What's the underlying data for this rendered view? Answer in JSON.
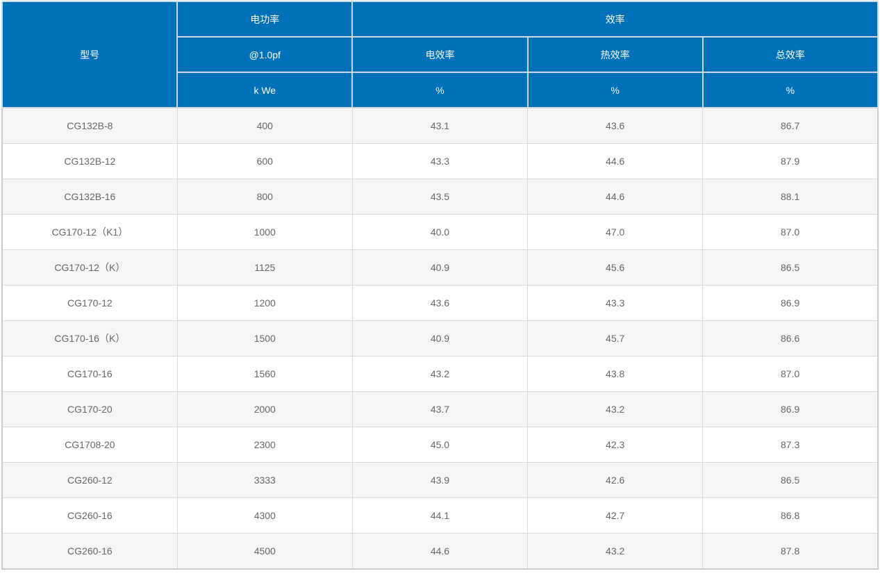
{
  "colors": {
    "header_bg": "#0071b8",
    "header_text": "#ffffff",
    "header_border": "#cddae4",
    "outer_border": "#cccccc",
    "body_border": "#d9d9d9",
    "row_odd_bg": "#f5f6f7",
    "row_even_bg": "#ffffff",
    "body_text": "#666666"
  },
  "table": {
    "header": {
      "model": "型号",
      "electric_power": "电功率",
      "power_factor": "@1.0pf",
      "unit_kwe": "k We",
      "efficiency": "效率",
      "electrical_efficiency": "电效率",
      "thermal_efficiency": "热效率",
      "total_efficiency": "总效率",
      "unit_percent": "%"
    }
  },
  "chart_data": {
    "type": "table",
    "columns": [
      "型号",
      "电功率 @1.0pf (k We)",
      "电效率 (%)",
      "热效率 (%)",
      "总效率 (%)"
    ],
    "rows": [
      [
        "CG132B-8",
        "400",
        "43.1",
        "43.6",
        "86.7"
      ],
      [
        "CG132B-12",
        "600",
        "43.3",
        "44.6",
        "87.9"
      ],
      [
        "CG132B-16",
        "800",
        "43.5",
        "44.6",
        "88.1"
      ],
      [
        "CG170-12（K1）",
        "1000",
        "40.0",
        "47.0",
        "87.0"
      ],
      [
        "CG170-12（K）",
        "1125",
        "40.9",
        "45.6",
        "86.5"
      ],
      [
        "CG170-12",
        "1200",
        "43.6",
        "43.3",
        "86.9"
      ],
      [
        "CG170-16（K）",
        "1500",
        "40.9",
        "45.7",
        "86.6"
      ],
      [
        "CG170-16",
        "1560",
        "43.2",
        "43.8",
        "87.0"
      ],
      [
        "CG170-20",
        "2000",
        "43.7",
        "43.2",
        "86.9"
      ],
      [
        "CG1708-20",
        "2300",
        "45.0",
        "42.3",
        "87.3"
      ],
      [
        "CG260-12",
        "3333",
        "43.9",
        "42.6",
        "86.5"
      ],
      [
        "CG260-16",
        "4300",
        "44.1",
        "42.7",
        "86.8"
      ],
      [
        "CG260-16",
        "4500",
        "44.6",
        "43.2",
        "87.8"
      ]
    ]
  }
}
